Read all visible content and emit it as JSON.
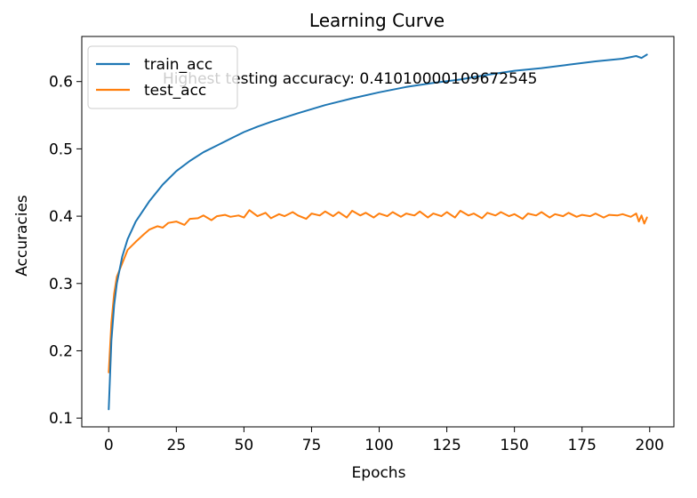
{
  "chart_data": {
    "type": "line",
    "title": "Learning Curve",
    "xlabel": "Epochs",
    "ylabel": "Accuracies",
    "xlim": [
      -9.95,
      208.95
    ],
    "ylim": [
      0.087,
      0.667
    ],
    "xticks": [
      0,
      25,
      50,
      75,
      100,
      125,
      150,
      175,
      200
    ],
    "yticks": [
      0.1,
      0.2,
      0.3,
      0.4,
      0.5,
      0.6
    ],
    "grid": false,
    "legend_position": "top-left",
    "annotation": "Highest testing accuracy: 0.41010000109672545",
    "series": [
      {
        "name": "train_acc",
        "color": "#1f77b4",
        "x": [
          0,
          1,
          2,
          3,
          5,
          7,
          10,
          15,
          20,
          25,
          30,
          35,
          40,
          45,
          50,
          55,
          60,
          70,
          80,
          90,
          100,
          110,
          120,
          130,
          140,
          150,
          160,
          170,
          180,
          190,
          195,
          197,
          199
        ],
        "y": [
          0.113,
          0.215,
          0.268,
          0.3,
          0.34,
          0.366,
          0.392,
          0.422,
          0.447,
          0.467,
          0.482,
          0.495,
          0.505,
          0.515,
          0.525,
          0.533,
          0.54,
          0.553,
          0.565,
          0.575,
          0.584,
          0.592,
          0.598,
          0.603,
          0.61,
          0.616,
          0.62,
          0.625,
          0.63,
          0.634,
          0.638,
          0.635,
          0.64
        ]
      },
      {
        "name": "test_acc",
        "color": "#ff7f0e",
        "x": [
          0,
          1,
          2,
          3,
          5,
          7,
          10,
          13,
          15,
          18,
          20,
          22,
          25,
          28,
          30,
          33,
          35,
          38,
          40,
          43,
          45,
          48,
          50,
          52,
          55,
          58,
          60,
          63,
          65,
          68,
          70,
          73,
          75,
          78,
          80,
          83,
          85,
          88,
          90,
          93,
          95,
          98,
          100,
          103,
          105,
          108,
          110,
          113,
          115,
          118,
          120,
          123,
          125,
          128,
          130,
          133,
          135,
          138,
          140,
          143,
          145,
          148,
          150,
          153,
          155,
          158,
          160,
          163,
          165,
          168,
          170,
          173,
          175,
          178,
          180,
          183,
          185,
          188,
          190,
          193,
          195,
          196,
          197,
          198,
          199
        ],
        "y": [
          0.168,
          0.242,
          0.285,
          0.31,
          0.33,
          0.35,
          0.362,
          0.373,
          0.38,
          0.385,
          0.383,
          0.39,
          0.392,
          0.387,
          0.396,
          0.397,
          0.401,
          0.394,
          0.4,
          0.402,
          0.399,
          0.401,
          0.398,
          0.409,
          0.4,
          0.405,
          0.397,
          0.403,
          0.4,
          0.406,
          0.401,
          0.396,
          0.404,
          0.401,
          0.407,
          0.4,
          0.406,
          0.398,
          0.408,
          0.401,
          0.405,
          0.398,
          0.404,
          0.4,
          0.406,
          0.399,
          0.404,
          0.401,
          0.407,
          0.398,
          0.404,
          0.4,
          0.406,
          0.398,
          0.408,
          0.401,
          0.404,
          0.397,
          0.405,
          0.401,
          0.406,
          0.4,
          0.403,
          0.396,
          0.404,
          0.401,
          0.406,
          0.398,
          0.403,
          0.4,
          0.405,
          0.399,
          0.402,
          0.4,
          0.404,
          0.398,
          0.402,
          0.401,
          0.403,
          0.399,
          0.404,
          0.392,
          0.401,
          0.389,
          0.398
        ]
      }
    ]
  }
}
